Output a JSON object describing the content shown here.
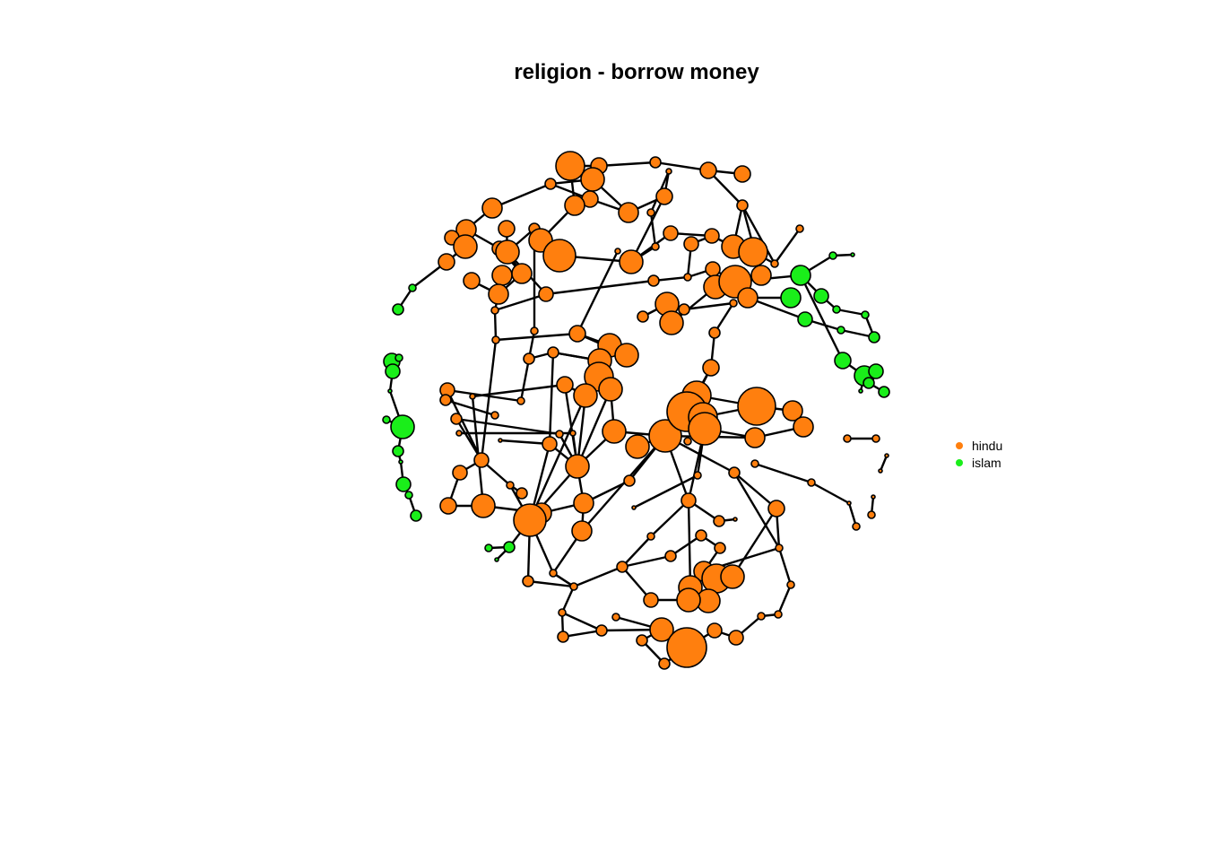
{
  "title": "religion - borrow money",
  "legend": {
    "items": [
      {
        "label": "hindu",
        "color": "#ff7f0e"
      },
      {
        "label": "islam",
        "color": "#1aee1a"
      }
    ]
  },
  "graph": {
    "type": "network",
    "node_groups": [
      "hindu",
      "islam"
    ]
  }
}
